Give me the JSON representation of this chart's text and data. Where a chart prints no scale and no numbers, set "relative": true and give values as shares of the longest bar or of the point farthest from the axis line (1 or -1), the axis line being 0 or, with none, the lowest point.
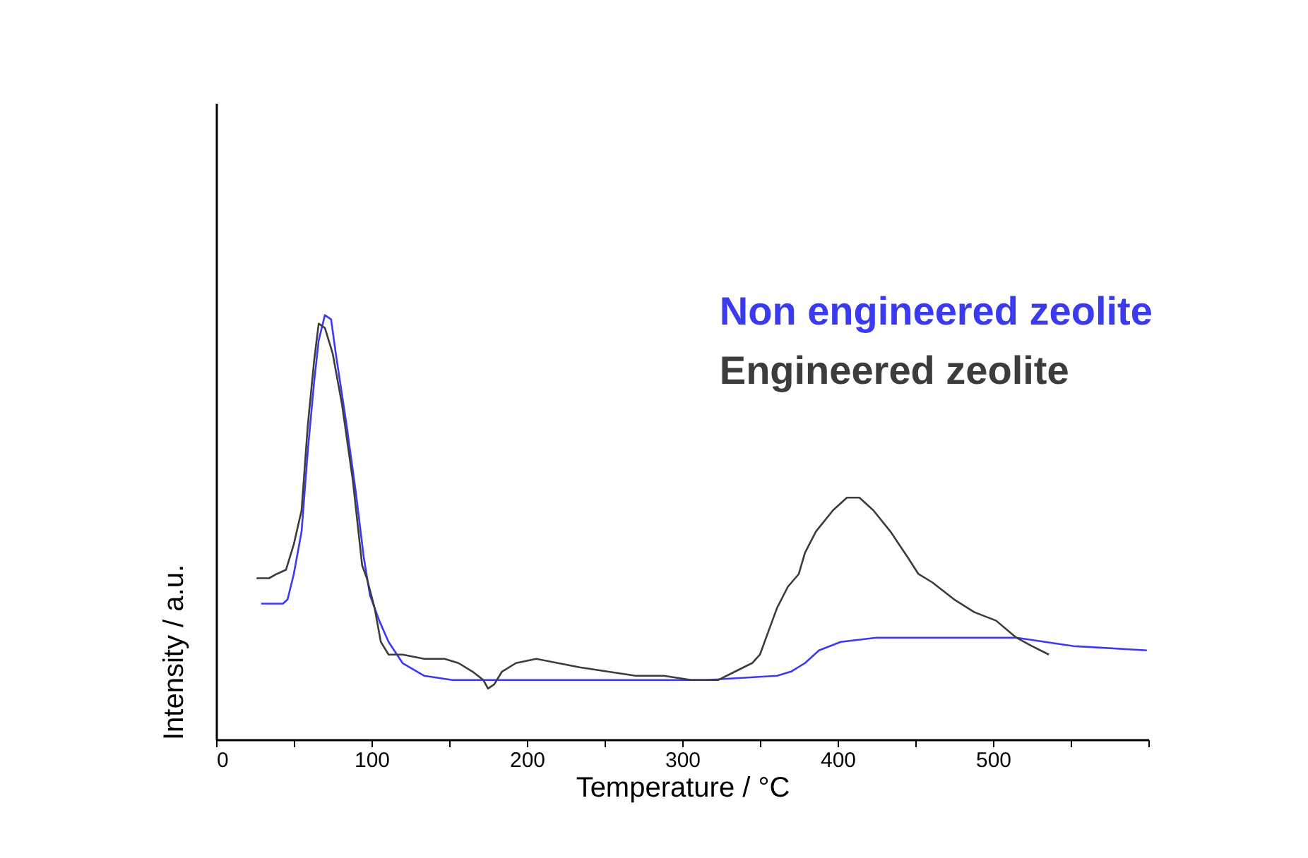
{
  "chart_data": {
    "type": "line",
    "relative": true,
    "xlabel": "Temperature / °C",
    "ylabel": "Intensity / a.u.",
    "xlim": [
      0,
      600
    ],
    "xticks": [
      0,
      {
        "value": 50,
        "label": null
      },
      100,
      {
        "value": 150,
        "label": null
      },
      200,
      {
        "value": 250,
        "label": null
      },
      300,
      {
        "value": 350,
        "label": null
      },
      400,
      {
        "value": 450,
        "label": null
      },
      500,
      {
        "value": 550,
        "label": null
      },
      {
        "value": 600,
        "label": null
      }
    ],
    "grid": false,
    "legend": "top right",
    "tick_labels": "x",
    "line_style": "solid",
    "marker": "none",
    "series": [
      {
        "name": "Non engineered zeolite",
        "color": "#3a3af0",
        "x": [
          29,
          43,
          46,
          50,
          55,
          59,
          63,
          66,
          70,
          74,
          77,
          84,
          90,
          95,
          99,
          105,
          111,
          120,
          134,
          152,
          179,
          225,
          270,
          315,
          361,
          370,
          379,
          388,
          402,
          425,
          479,
          515,
          552,
          599
        ],
        "values": [
          0.32,
          0.32,
          0.33,
          0.39,
          0.49,
          0.68,
          0.84,
          0.94,
          1.0,
          0.99,
          0.91,
          0.74,
          0.58,
          0.43,
          0.34,
          0.28,
          0.23,
          0.18,
          0.15,
          0.14,
          0.14,
          0.14,
          0.14,
          0.14,
          0.15,
          0.16,
          0.18,
          0.21,
          0.23,
          0.24,
          0.24,
          0.24,
          0.22,
          0.21
        ]
      },
      {
        "name": "Engineered zeolite",
        "color": "#3c3c3c",
        "x": [
          26,
          34,
          39,
          45,
          50,
          55,
          59,
          63,
          66,
          70,
          75,
          81,
          88,
          94,
          97,
          102,
          106,
          111,
          120,
          134,
          147,
          156,
          165,
          172,
          175,
          179,
          184,
          193,
          206,
          220,
          234,
          252,
          270,
          288,
          306,
          323,
          334,
          345,
          350,
          355,
          361,
          368,
          375,
          379,
          386,
          397,
          406,
          414,
          423,
          434,
          445,
          452,
          461,
          475,
          488,
          502,
          515,
          525,
          536
        ],
        "values": [
          0.38,
          0.38,
          0.39,
          0.4,
          0.46,
          0.54,
          0.74,
          0.89,
          0.98,
          0.97,
          0.91,
          0.79,
          0.61,
          0.41,
          0.38,
          0.31,
          0.23,
          0.2,
          0.2,
          0.19,
          0.19,
          0.18,
          0.16,
          0.14,
          0.12,
          0.13,
          0.16,
          0.18,
          0.19,
          0.18,
          0.17,
          0.16,
          0.15,
          0.15,
          0.14,
          0.14,
          0.16,
          0.18,
          0.2,
          0.25,
          0.31,
          0.36,
          0.39,
          0.44,
          0.49,
          0.54,
          0.57,
          0.57,
          0.54,
          0.49,
          0.43,
          0.39,
          0.37,
          0.33,
          0.3,
          0.28,
          0.24,
          0.22,
          0.2
        ]
      }
    ]
  }
}
